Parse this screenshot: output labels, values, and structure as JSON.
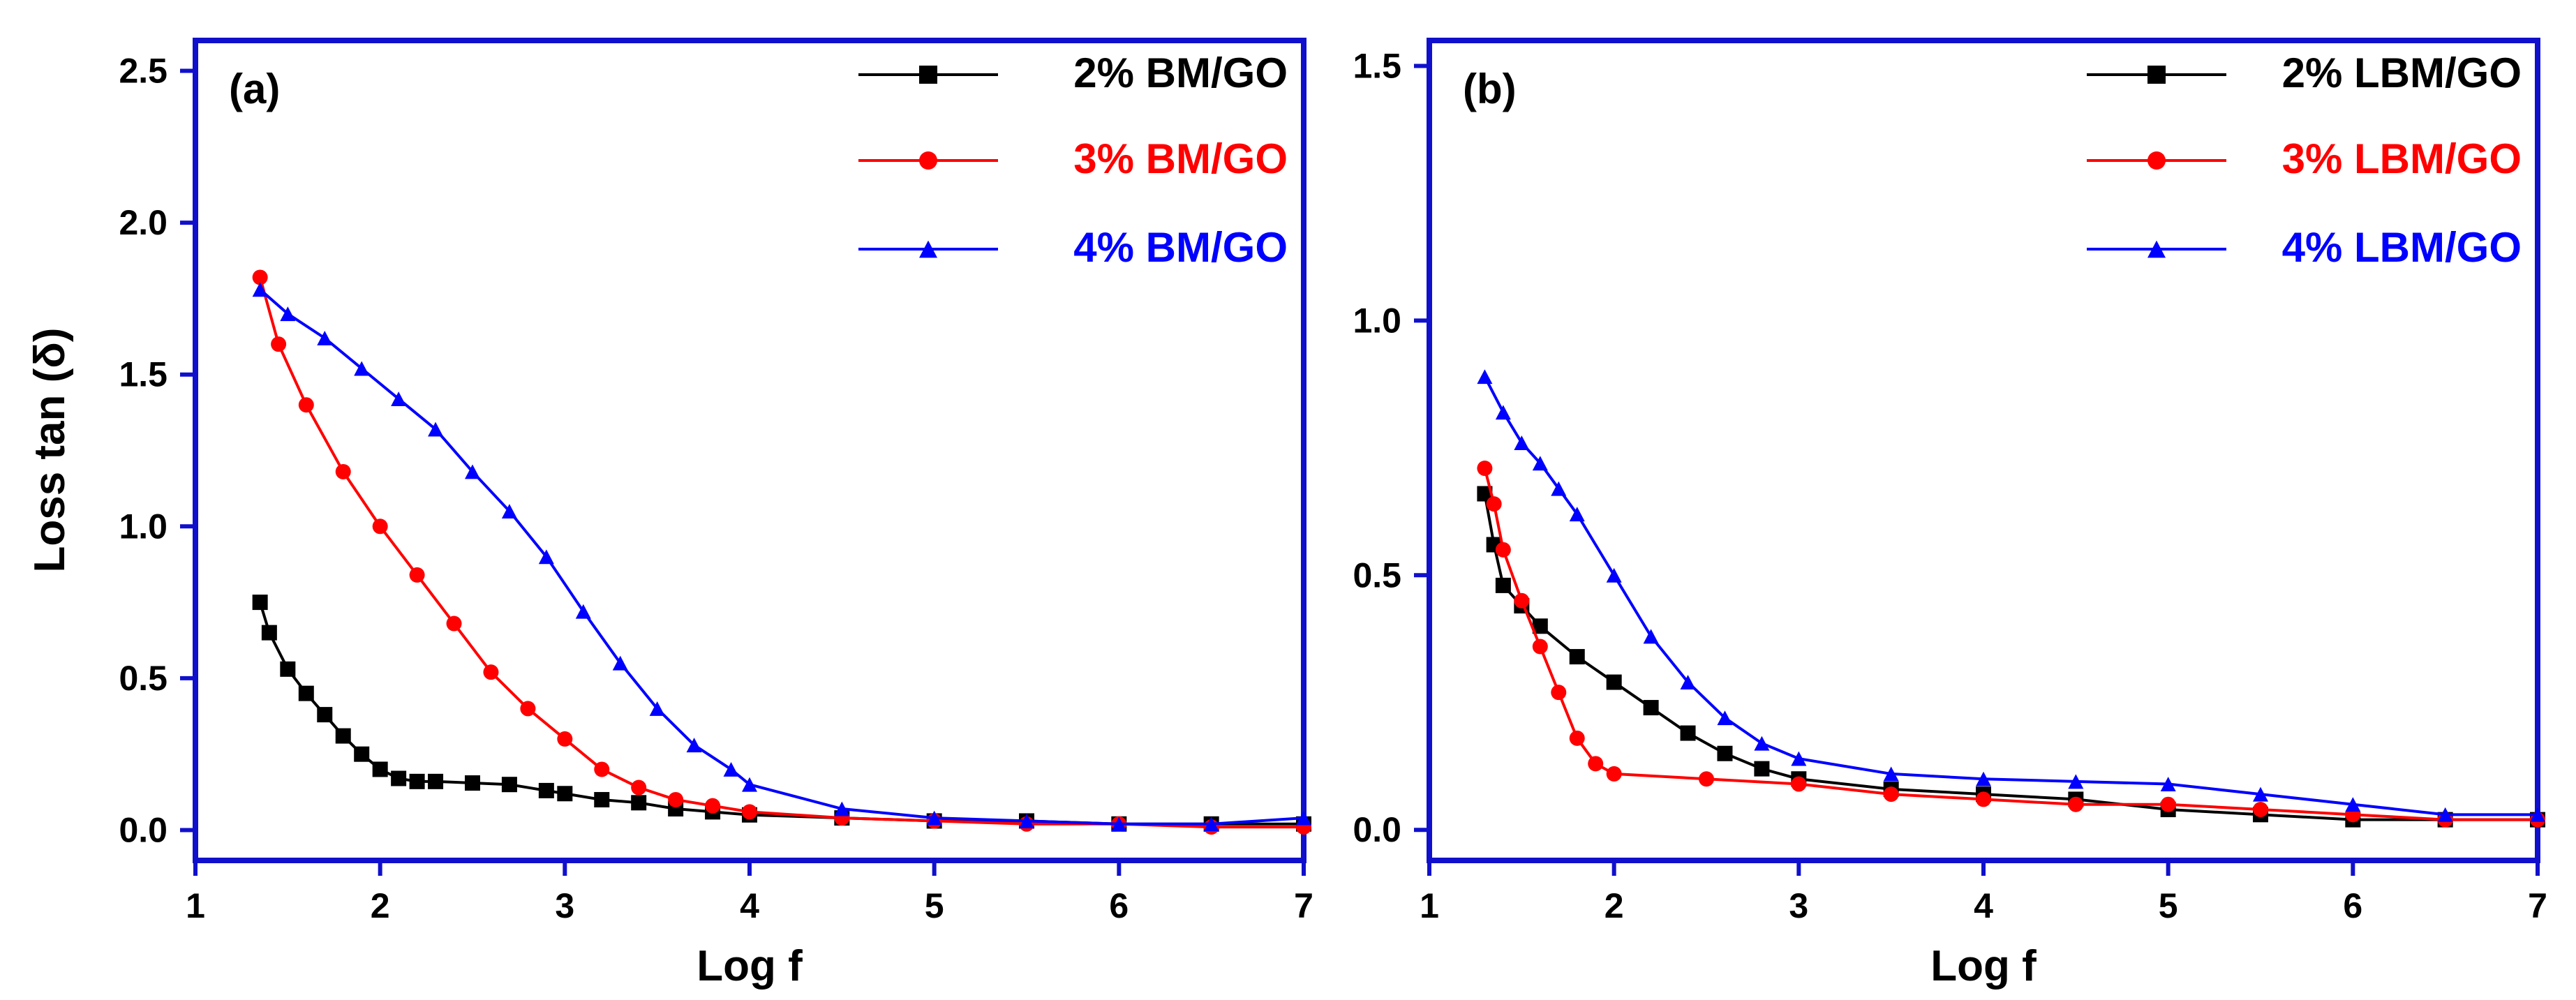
{
  "chart_data": [
    {
      "type": "line",
      "panel_label": "(a)",
      "xlabel": "Log f",
      "ylabel": "Loss tan (δ)",
      "xlim": [
        1,
        7
      ],
      "ylim": [
        -0.1,
        2.6
      ],
      "xticks": [
        "1",
        "2",
        "3",
        "4",
        "5",
        "6",
        "7"
      ],
      "yticks": [
        "0.0",
        "0.5",
        "1.0",
        "1.5",
        "2.0",
        "2.5"
      ],
      "ytick_values": [
        0,
        0.5,
        1.0,
        1.5,
        2.0,
        2.5
      ],
      "legend_position": "top-right",
      "series": [
        {
          "name": "2% BM/GO",
          "color": "#000000",
          "marker": "square",
          "x": [
            1.35,
            1.4,
            1.5,
            1.6,
            1.7,
            1.8,
            1.9,
            2.0,
            2.1,
            2.2,
            2.3,
            2.5,
            2.7,
            2.9,
            3.0,
            3.2,
            3.4,
            3.6,
            3.8,
            4.0,
            4.5,
            5.0,
            5.5,
            6.0,
            6.5,
            7.0
          ],
          "y": [
            0.75,
            0.65,
            0.53,
            0.45,
            0.38,
            0.31,
            0.25,
            0.2,
            0.17,
            0.16,
            0.16,
            0.155,
            0.15,
            0.13,
            0.12,
            0.1,
            0.09,
            0.07,
            0.06,
            0.05,
            0.04,
            0.03,
            0.03,
            0.02,
            0.02,
            0.02
          ]
        },
        {
          "name": "3% BM/GO",
          "color": "#ff0000",
          "marker": "circle",
          "x": [
            1.35,
            1.45,
            1.6,
            1.8,
            2.0,
            2.2,
            2.4,
            2.6,
            2.8,
            3.0,
            3.2,
            3.4,
            3.6,
            3.8,
            4.0,
            4.5,
            5.0,
            5.5,
            6.0,
            6.5,
            7.0
          ],
          "y": [
            1.82,
            1.6,
            1.4,
            1.18,
            1.0,
            0.84,
            0.68,
            0.52,
            0.4,
            0.3,
            0.2,
            0.14,
            0.1,
            0.08,
            0.06,
            0.04,
            0.03,
            0.02,
            0.02,
            0.01,
            0.01
          ]
        },
        {
          "name": "4% BM/GO",
          "color": "#0000ff",
          "marker": "triangle",
          "x": [
            1.35,
            1.5,
            1.7,
            1.9,
            2.1,
            2.3,
            2.5,
            2.7,
            2.9,
            3.1,
            3.3,
            3.5,
            3.7,
            3.9,
            4.0,
            4.5,
            5.0,
            5.5,
            6.0,
            6.5,
            7.0
          ],
          "y": [
            1.78,
            1.7,
            1.62,
            1.52,
            1.42,
            1.32,
            1.18,
            1.05,
            0.9,
            0.72,
            0.55,
            0.4,
            0.28,
            0.2,
            0.15,
            0.07,
            0.04,
            0.03,
            0.02,
            0.02,
            0.04
          ]
        }
      ]
    },
    {
      "type": "line",
      "panel_label": "(b)",
      "xlabel": "Log f",
      "ylabel": "",
      "xlim": [
        1,
        7
      ],
      "ylim": [
        -0.06,
        1.55
      ],
      "xticks": [
        "1",
        "2",
        "3",
        "4",
        "5",
        "6",
        "7"
      ],
      "yticks": [
        "0.0",
        "0.5",
        "1.0",
        "1.5"
      ],
      "ytick_values": [
        0,
        0.5,
        1.0,
        1.5
      ],
      "legend_position": "top-right",
      "series": [
        {
          "name": "2% LBM/GO",
          "color": "#000000",
          "marker": "square",
          "x": [
            1.3,
            1.35,
            1.4,
            1.5,
            1.6,
            1.8,
            2.0,
            2.2,
            2.4,
            2.6,
            2.8,
            3.0,
            3.5,
            4.0,
            4.5,
            5.0,
            5.5,
            6.0,
            6.5,
            7.0
          ],
          "y": [
            0.66,
            0.56,
            0.48,
            0.44,
            0.4,
            0.34,
            0.29,
            0.24,
            0.19,
            0.15,
            0.12,
            0.1,
            0.08,
            0.07,
            0.06,
            0.04,
            0.03,
            0.02,
            0.02,
            0.02
          ]
        },
        {
          "name": "3% LBM/GO",
          "color": "#ff0000",
          "marker": "circle",
          "x": [
            1.3,
            1.35,
            1.4,
            1.5,
            1.6,
            1.7,
            1.8,
            1.9,
            2.0,
            2.5,
            3.0,
            3.5,
            4.0,
            4.5,
            5.0,
            5.5,
            6.0,
            6.5,
            7.0
          ],
          "y": [
            0.71,
            0.64,
            0.55,
            0.45,
            0.36,
            0.27,
            0.18,
            0.13,
            0.11,
            0.1,
            0.09,
            0.07,
            0.06,
            0.05,
            0.05,
            0.04,
            0.03,
            0.02,
            0.02
          ]
        },
        {
          "name": "4% LBM/GO",
          "color": "#0000ff",
          "marker": "triangle",
          "x": [
            1.3,
            1.4,
            1.5,
            1.6,
            1.7,
            1.8,
            2.0,
            2.2,
            2.4,
            2.6,
            2.8,
            3.0,
            3.5,
            4.0,
            4.5,
            5.0,
            5.5,
            6.0,
            6.5,
            7.0
          ],
          "y": [
            0.89,
            0.82,
            0.76,
            0.72,
            0.67,
            0.62,
            0.5,
            0.38,
            0.29,
            0.22,
            0.17,
            0.14,
            0.11,
            0.1,
            0.095,
            0.09,
            0.07,
            0.05,
            0.03,
            0.03
          ]
        }
      ]
    }
  ]
}
